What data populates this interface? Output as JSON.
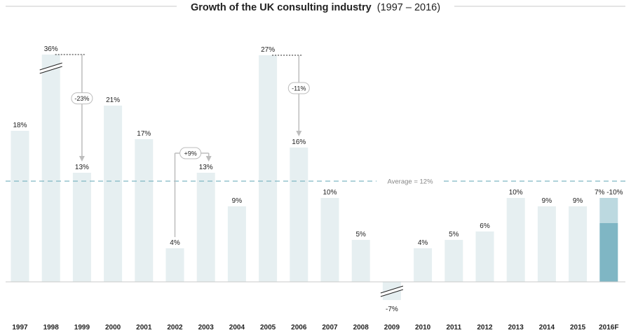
{
  "chart_data": {
    "type": "bar",
    "title": "Growth of the UK consulting industry",
    "title_period": "(1997 – 2016)",
    "categories": [
      "1997",
      "1998",
      "1999",
      "2000",
      "2001",
      "2002",
      "2003",
      "2004",
      "2005",
      "2006",
      "2007",
      "2008",
      "2009",
      "2010",
      "2011",
      "2012",
      "2013",
      "2014",
      "2015",
      "2016F"
    ],
    "values": [
      18,
      36,
      13,
      21,
      17,
      4,
      13,
      9,
      27,
      16,
      10,
      5,
      -7,
      4,
      5,
      6,
      10,
      9,
      9,
      7
    ],
    "labels": [
      "18%",
      "36%",
      "13%",
      "21%",
      "17%",
      "4%",
      "13%",
      "9%",
      "27%",
      "16%",
      "10%",
      "5%",
      "-7%",
      "4%",
      "5%",
      "6%",
      "10%",
      "9%",
      "9%",
      "7% -10%"
    ],
    "forecast": {
      "category": "2016F",
      "low": 7,
      "high": 10
    },
    "truncated_bars": [
      "1998",
      "2009"
    ],
    "average": {
      "value": 12,
      "label": "Average = 12%"
    },
    "annotations": [
      {
        "from": "1998",
        "to": "1999",
        "label": "-23%"
      },
      {
        "from": "2002",
        "to": "2003",
        "label": "+9%"
      },
      {
        "from": "2005",
        "to": "2006",
        "label": "-11%"
      }
    ],
    "grid": false,
    "colors": {
      "bar": "#e6eff1",
      "forecast_low": "#7fb6c4",
      "forecast_high": "#bcd9e0",
      "average_line": "#7fb6c4",
      "axis": "#c8c8c8",
      "arrow": "#bdbdbd",
      "text": "#222222"
    }
  }
}
